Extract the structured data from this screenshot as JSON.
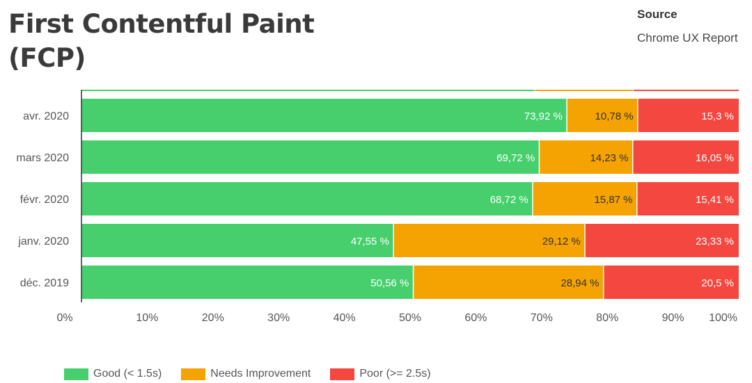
{
  "title": "First Contentful Paint (FCP)",
  "source": {
    "label": "Source",
    "value": "Chrome UX Report"
  },
  "colors": {
    "good": "#47cf6d",
    "needs": "#f5a303",
    "poor": "#f4473f",
    "axis": "#333333",
    "tick_text": "#555555",
    "bar_text_light": "#ffffff",
    "bar_text_dark": "#333333"
  },
  "chart_data": {
    "type": "bar",
    "orientation": "horizontal",
    "stacked": true,
    "categories": [
      "avr. 2020",
      "mars 2020",
      "févr. 2020",
      "janv. 2020",
      "déc. 2019"
    ],
    "series": [
      {
        "name": "Good (< 1.5s)",
        "color": "#47cf6d",
        "values": [
          73.92,
          69.72,
          68.72,
          47.55,
          50.56
        ],
        "labels": [
          "73,92 %",
          "69,72 %",
          "68,72 %",
          "47,55 %",
          "50,56 %"
        ]
      },
      {
        "name": "Needs Improvement",
        "color": "#f5a303",
        "values": [
          10.78,
          14.23,
          15.87,
          29.12,
          28.94
        ],
        "labels": [
          "10,78 %",
          "14,23 %",
          "15,87 %",
          "29,12 %",
          "28,94 %"
        ]
      },
      {
        "name": "Poor (>= 2.5s)",
        "color": "#f4473f",
        "values": [
          15.3,
          16.05,
          15.41,
          23.33,
          20.5
        ],
        "labels": [
          "15,3 %",
          "16,05 %",
          "15,41 %",
          "23,33 %",
          "20,5 %"
        ]
      }
    ],
    "partial_top_row": {
      "values": [
        69,
        15,
        16
      ]
    },
    "xlim": [
      0,
      100
    ],
    "x_ticks": [
      0,
      10,
      20,
      30,
      40,
      50,
      60,
      70,
      80,
      90,
      100
    ],
    "x_tick_labels": [
      "0%",
      "10%",
      "20%",
      "30%",
      "40%",
      "50%",
      "60%",
      "70%",
      "80%",
      "90%",
      "100%"
    ],
    "grid": false,
    "legend_position": "bottom-left"
  }
}
